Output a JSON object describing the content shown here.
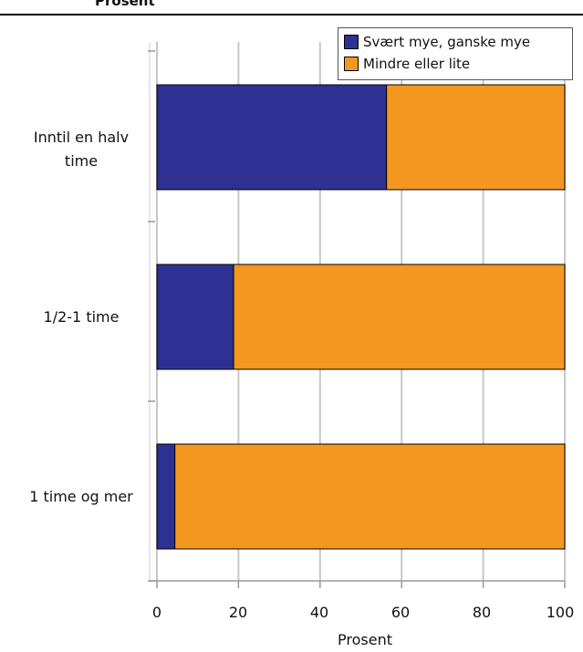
{
  "page": {
    "top_title": "Prosent"
  },
  "chart_data": {
    "type": "bar",
    "orientation": "horizontal",
    "stacked": true,
    "categories": [
      "Inntil en halv time",
      "1/2-1 time",
      "1 time og mer"
    ],
    "series": [
      {
        "name": "Svært mye, ganske mye",
        "color": "#2e3192",
        "values": [
          56.3,
          18.8,
          4.4
        ]
      },
      {
        "name": "Mindre eller lite",
        "color": "#f39720",
        "values": [
          43.7,
          81.2,
          95.6
        ]
      }
    ],
    "xlabel": "Prosent",
    "xlim": [
      0,
      100
    ],
    "x_ticks": [
      "0",
      "20",
      "40",
      "60",
      "80",
      "100"
    ],
    "grid": true,
    "legend_position": "top-right"
  }
}
